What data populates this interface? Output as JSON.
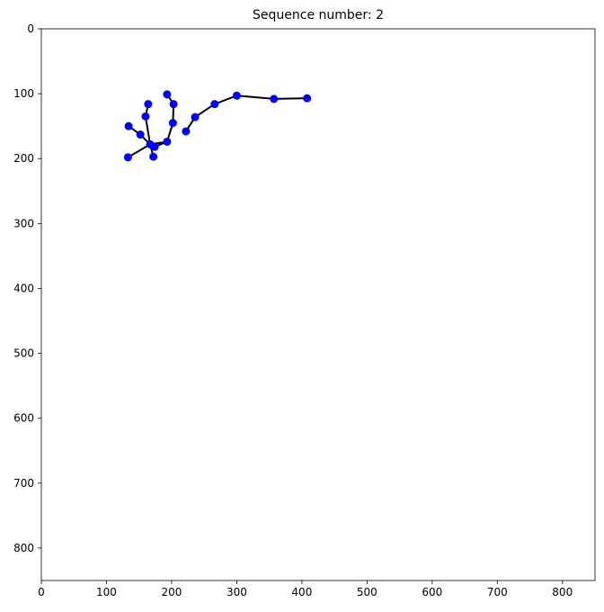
{
  "chart_data": {
    "type": "scatter",
    "title": "Sequence number: 2",
    "xlabel": "",
    "ylabel": "",
    "xlim": [
      0,
      850
    ],
    "ylim": [
      850,
      0
    ],
    "y_inverted": true,
    "grid": false,
    "x_ticks": [
      0,
      100,
      200,
      300,
      400,
      500,
      600,
      700,
      800
    ],
    "y_ticks": [
      0,
      100,
      200,
      300,
      400,
      500,
      600,
      700,
      800
    ],
    "point_color": "#0000ff",
    "line_color": "#000000",
    "points": [
      {
        "x": 222,
        "y": 158
      },
      {
        "x": 236,
        "y": 136
      },
      {
        "x": 266,
        "y": 116
      },
      {
        "x": 300,
        "y": 103
      },
      {
        "x": 357,
        "y": 108
      },
      {
        "x": 408,
        "y": 107
      },
      {
        "x": 193,
        "y": 101
      },
      {
        "x": 203,
        "y": 116
      },
      {
        "x": 202,
        "y": 145
      },
      {
        "x": 193,
        "y": 174
      },
      {
        "x": 174,
        "y": 182
      },
      {
        "x": 164,
        "y": 116
      },
      {
        "x": 160,
        "y": 135
      },
      {
        "x": 167,
        "y": 178
      },
      {
        "x": 152,
        "y": 163
      },
      {
        "x": 134,
        "y": 150
      },
      {
        "x": 133,
        "y": 198
      },
      {
        "x": 172,
        "y": 197
      }
    ],
    "segments": [
      [
        0,
        1
      ],
      [
        1,
        2
      ],
      [
        2,
        3
      ],
      [
        3,
        4
      ],
      [
        4,
        5
      ],
      [
        6,
        7
      ],
      [
        7,
        8
      ],
      [
        8,
        9
      ],
      [
        9,
        10
      ],
      [
        11,
        12
      ],
      [
        12,
        13
      ],
      [
        13,
        10
      ],
      [
        15,
        14
      ],
      [
        14,
        13
      ],
      [
        13,
        16
      ],
      [
        13,
        17
      ],
      [
        9,
        13
      ]
    ]
  }
}
